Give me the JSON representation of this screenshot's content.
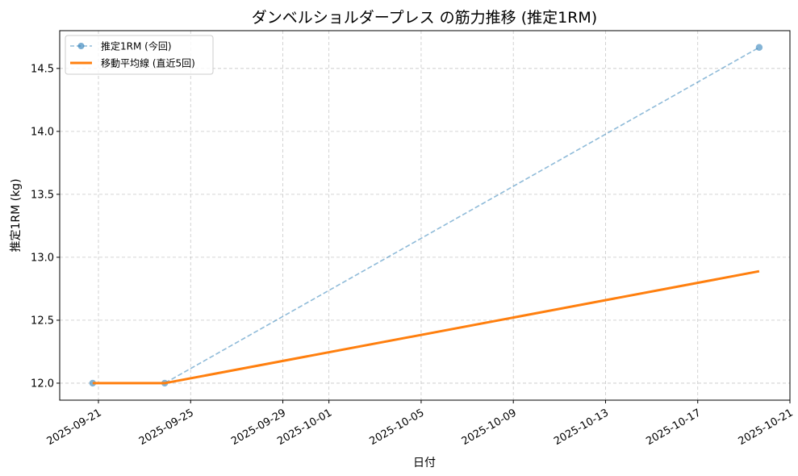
{
  "chart_data": {
    "type": "line",
    "title": "ダンベルショルダープレス の筋力推移 (推定1RM)",
    "xlabel": "日付",
    "ylabel": "推定1RM (kg)",
    "xlim": [
      "2025-09-19T07:40",
      "2025-10-21T00:00"
    ],
    "ylim": [
      11.865,
      14.8
    ],
    "grid": true,
    "legend_position": "top-left",
    "x_ticks": [
      "2025-09-21",
      "2025-09-25",
      "2025-09-29",
      "2025-10-01",
      "2025-10-05",
      "2025-10-09",
      "2025-10-13",
      "2025-10-17",
      "2025-10-21"
    ],
    "y_ticks": [
      12.0,
      12.5,
      13.0,
      13.5,
      14.0,
      14.5
    ],
    "series": [
      {
        "name": "推定1RM (今回)",
        "color": "#1f77b4",
        "style": "dashed-markers",
        "x": [
          "2025-09-20T18:00",
          "2025-09-23T21:00",
          "2025-10-19T16:00"
        ],
        "values": [
          12.0,
          12.0,
          14.667
        ]
      },
      {
        "name": "移動平均線 (直近5回)",
        "color": "#ff7f0e",
        "style": "solid",
        "x": [
          "2025-09-20T18:00",
          "2025-09-23T21:00",
          "2025-10-19T16:00"
        ],
        "values": [
          12.0,
          12.0,
          12.889
        ]
      }
    ]
  }
}
